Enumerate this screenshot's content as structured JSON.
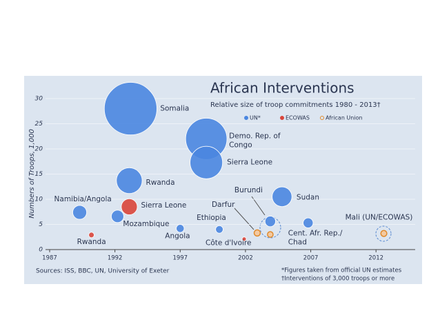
{
  "chart_data": {
    "type": "scatter",
    "title": "African Interventions",
    "subtitle": "Relative size of troop commitments 1980 - 2013†",
    "y_label": "Numbers of Troops, 1,000",
    "sources": "Sources: ISS, BBC, UN, University of Exeter",
    "notes": [
      "*Figures taken from official UN estimates",
      "†Interventions of 3,000 troops or more"
    ],
    "xlim": [
      1987,
      2015
    ],
    "ylim": [
      0,
      30
    ],
    "xticks": [
      1987,
      1992,
      1997,
      2002,
      2007,
      2012
    ],
    "yticks": [
      0,
      5,
      10,
      15,
      20,
      25,
      30
    ],
    "grid": true,
    "series": [
      {
        "name": "UN*",
        "color": "#4a86e0",
        "x": [
          1989.3,
          1993.2,
          1993.1,
          1992.2,
          1997.0,
          2000.0,
          1999.0,
          1999.0,
          2003.9,
          2004.8,
          2006.8
        ],
        "values": [
          7.4,
          28,
          13.7,
          6.6,
          4.2,
          4.0,
          22,
          17.3,
          5.6,
          10.5,
          5.3
        ],
        "labels": [
          [
            "Namibia/Angola"
          ],
          [
            "Somalia"
          ],
          [
            "Rwanda"
          ],
          [
            "Mozambique"
          ],
          [
            "Angola"
          ],
          [
            "Ethiopia"
          ],
          [
            "Demo. Rep. of",
            "Congo"
          ],
          [
            "Sierra Leone"
          ],
          [
            "Burundi"
          ],
          [
            "Sudan"
          ],
          [
            "Cent. Afr. Rep./",
            "Chad"
          ]
        ]
      },
      {
        "name": "ECOWAS",
        "color": "#d9453a",
        "x": [
          1990.2,
          1993.1,
          2001.9
        ],
        "values": [
          2.9,
          8.5,
          2.1
        ],
        "labels": [
          [
            "Rwanda"
          ],
          [
            "Sierra Leone"
          ],
          [
            "Côte d'Ivoire"
          ]
        ]
      },
      {
        "name": "African Union",
        "color": "#e08a2c",
        "x": [
          2002.9,
          2003.9,
          2012.6
        ],
        "values": [
          3.3,
          3.0,
          3.2
        ],
        "labels": [
          [
            "Darfur"
          ],
          null,
          [
            "Mali (UN/ECOWAS)"
          ]
        ]
      }
    ]
  }
}
